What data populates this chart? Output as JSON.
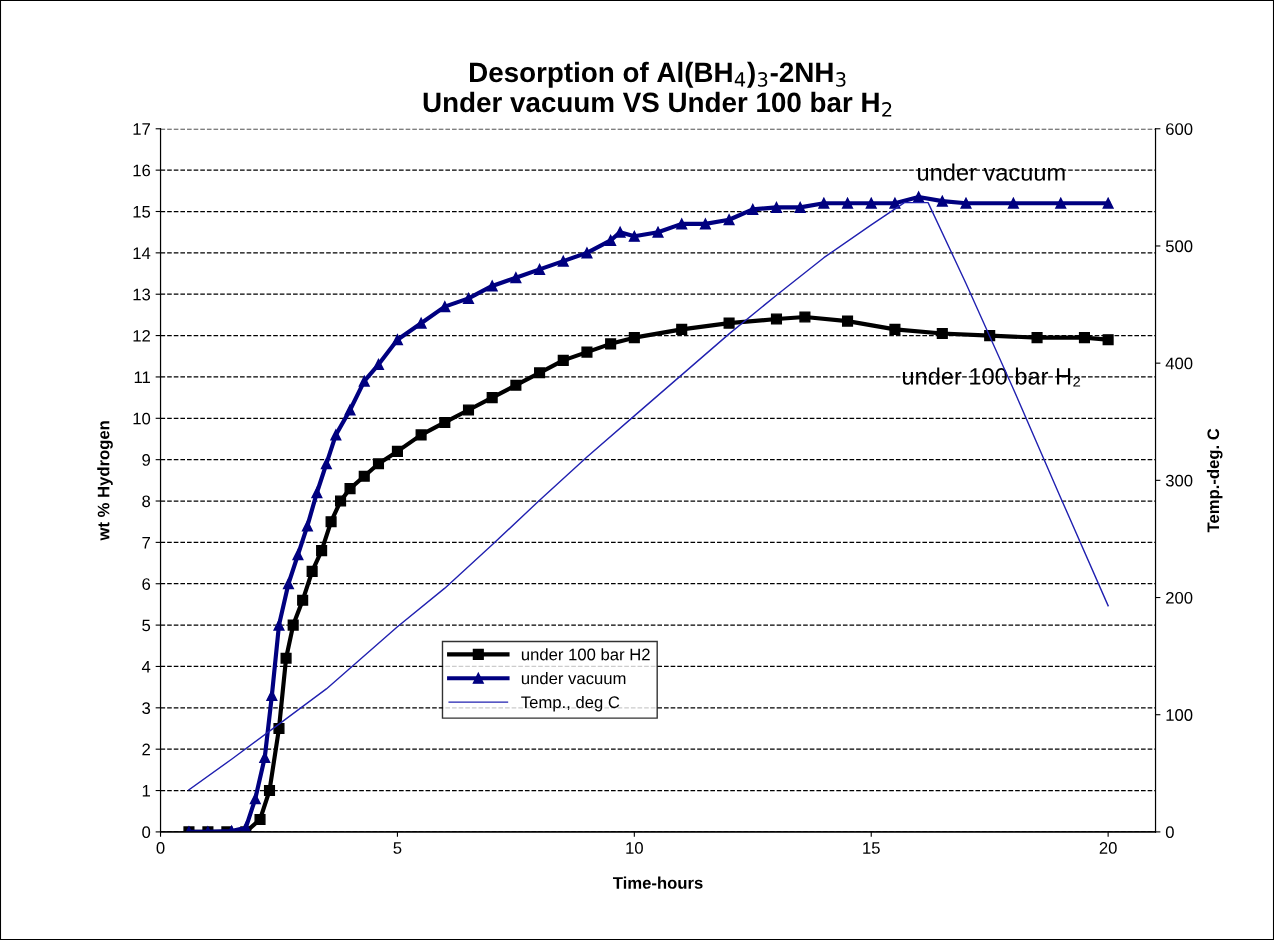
{
  "chart_data": {
    "type": "line",
    "title": "Desorption of Al(BH$_{4}$)$_{3}$-2NH$_{3}$\nUnder vacuum VS Under 100 bar H$_{2}$",
    "xlabel": "Time-hours",
    "ylabel": "wt % Hydrogen",
    "y2label": "Temp.-deg. C",
    "xlim": [
      0,
      21
    ],
    "xticks": [
      0,
      5,
      10,
      15,
      20
    ],
    "ylim": [
      0,
      17
    ],
    "yticks": [
      0,
      1,
      2,
      3,
      4,
      5,
      6,
      7,
      8,
      9,
      10,
      11,
      12,
      13,
      14,
      15,
      16,
      17
    ],
    "y2lim": [
      0,
      600
    ],
    "y2ticks": [
      0,
      100,
      200,
      300,
      400,
      500,
      600
    ],
    "grid": "y",
    "legend": "center left",
    "annotations": [
      "under vacuum",
      "under 100 bar H₂"
    ],
    "series": [
      {
        "name": "under 100 bar H2",
        "color": "#000000",
        "marker": "square",
        "line_style": "solid",
        "x": [
          0.6,
          1.0,
          1.4,
          1.8,
          2.1,
          2.3,
          2.5,
          2.65,
          2.8,
          3.0,
          3.2,
          3.4,
          3.6,
          3.8,
          4.0,
          4.3,
          4.6,
          5.0,
          5.5,
          6.0,
          6.5,
          7.0,
          7.5,
          8.0,
          8.5,
          9.0,
          9.5,
          10.0,
          11.0,
          12.0,
          13.0,
          13.6,
          14.5,
          15.5,
          16.5,
          17.5,
          18.5,
          19.5,
          20.0
        ],
        "values": [
          0,
          0,
          0,
          0,
          0.3,
          1.0,
          2.5,
          4.2,
          5.0,
          5.6,
          6.3,
          6.8,
          7.5,
          8.0,
          8.3,
          8.6,
          8.9,
          9.2,
          9.6,
          9.9,
          10.2,
          10.5,
          10.8,
          11.1,
          11.4,
          11.6,
          11.8,
          11.95,
          12.15,
          12.3,
          12.4,
          12.45,
          12.35,
          12.15,
          12.05,
          12.0,
          11.95,
          11.95,
          11.9
        ]
      },
      {
        "name": "under vacuum",
        "color": "#000080",
        "marker": "triangle",
        "line_style": "solid",
        "x": [
          0.6,
          1.0,
          1.5,
          1.8,
          2.0,
          2.2,
          2.35,
          2.5,
          2.7,
          2.9,
          3.1,
          3.3,
          3.5,
          3.7,
          4.0,
          4.3,
          4.6,
          5.0,
          5.5,
          6.0,
          6.5,
          7.0,
          7.5,
          8.0,
          8.5,
          9.0,
          9.5,
          9.7,
          10.0,
          10.5,
          11.0,
          11.5,
          12.0,
          12.5,
          13.0,
          13.5,
          14.0,
          14.5,
          15.0,
          15.5,
          16.0,
          16.5,
          17.0,
          18.0,
          19.0,
          20.0
        ],
        "values": [
          0,
          0,
          0.02,
          0.1,
          0.8,
          1.8,
          3.3,
          5.0,
          6.0,
          6.7,
          7.4,
          8.2,
          8.9,
          9.6,
          10.2,
          10.9,
          11.3,
          11.9,
          12.3,
          12.7,
          12.9,
          13.2,
          13.4,
          13.6,
          13.8,
          14.0,
          14.3,
          14.5,
          14.4,
          14.5,
          14.7,
          14.7,
          14.8,
          15.05,
          15.1,
          15.1,
          15.2,
          15.2,
          15.2,
          15.2,
          15.35,
          15.25,
          15.2,
          15.2,
          15.2,
          15.2
        ]
      },
      {
        "name": "Temp., deg C",
        "color": "#2020b0",
        "marker": "none",
        "line_style": "solid",
        "axis": "y2",
        "x": [
          0.6,
          1.5,
          2.5,
          3.5,
          5.0,
          6.0,
          7.0,
          8.0,
          9.0,
          10.0,
          11.0,
          12.0,
          13.0,
          14.0,
          15.0,
          15.7,
          16.2,
          17.0,
          18.0,
          19.0,
          20.0
        ],
        "values": [
          36,
          62,
          92,
          122,
          175,
          208,
          245,
          283,
          320,
          355,
          390,
          425,
          458,
          490,
          518,
          537,
          537,
          468,
          378,
          285,
          193
        ]
      }
    ]
  }
}
